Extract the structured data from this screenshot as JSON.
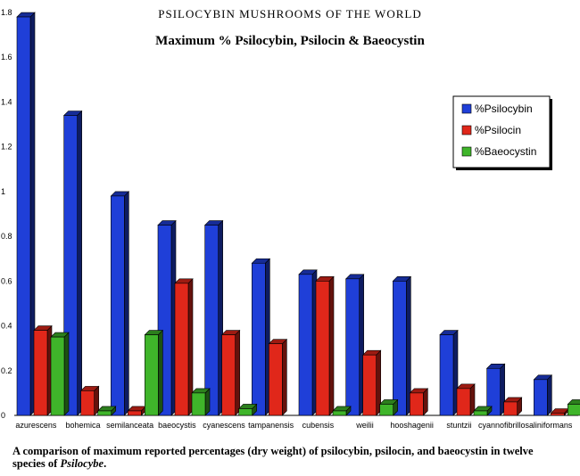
{
  "header": {
    "book_title": "PSILOCYBIN MUSHROOMS OF THE WORLD"
  },
  "caption": {
    "text": "A comparison of maximum reported percentages (dry weight) of psilocybin, psilocin, and baeocystin in twelve species of",
    "italic": "Psilocybe",
    "end": "."
  },
  "colors": {
    "psilocybin": "#1f3fd8",
    "psilocin": "#e0271a",
    "baeocystin": "#3fb52a"
  },
  "chart_data": {
    "type": "bar",
    "title": "Maximum % Psilocybin, Psilocin & Baeocystin",
    "xlabel": "",
    "ylabel": "",
    "ylim": [
      0,
      1.8
    ],
    "yticks": [
      "0",
      "0.2",
      "0.4",
      "0.6",
      "0.8",
      "1",
      "1.2",
      "1.4",
      "1.6",
      "1.8"
    ],
    "legend_position": "top-right",
    "categories": [
      "azurescens",
      "bohemica",
      "semilanceata",
      "baeocystis",
      "cyanescens",
      "tampanensis",
      "cubensis",
      "weilii",
      "hooshagenii",
      "stuntzii",
      "cyannofibrillosa",
      "liniformans"
    ],
    "series": [
      {
        "name": "%Psilocybin",
        "values": [
          1.78,
          1.34,
          0.98,
          0.85,
          0.85,
          0.68,
          0.63,
          0.61,
          0.6,
          0.36,
          0.21,
          0.16
        ]
      },
      {
        "name": "%Psilocin",
        "values": [
          0.38,
          0.11,
          0.02,
          0.59,
          0.36,
          0.32,
          0.6,
          0.27,
          0.1,
          0.12,
          0.06,
          0.01
        ]
      },
      {
        "name": "%Baeocystin",
        "values": [
          0.35,
          0.02,
          0.36,
          0.1,
          0.03,
          0,
          0.02,
          0.05,
          0,
          0.02,
          0,
          0.05
        ]
      }
    ]
  }
}
